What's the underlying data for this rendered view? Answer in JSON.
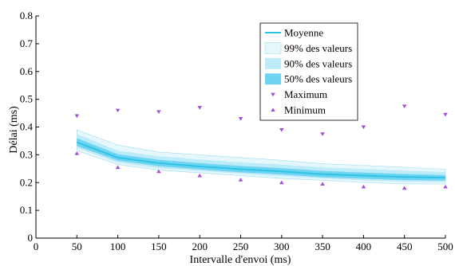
{
  "chart_data": {
    "type": "line",
    "xlabel": "Intervalle d'envoi (ms)",
    "ylabel": "Délai (ms)",
    "xlim": [
      0,
      500
    ],
    "ylim": [
      0,
      0.8
    ],
    "x_ticks": [
      "0",
      "50",
      "100",
      "150",
      "200",
      "250",
      "300",
      "350",
      "400",
      "450",
      "500"
    ],
    "y_ticks": [
      "0",
      "0.1",
      "0.2",
      "0.3",
      "0.4",
      "0.5",
      "0.6",
      "0.7",
      "0.8"
    ],
    "grid": false,
    "legend_position": "top-right",
    "colors": {
      "mean": "#2ec4e6",
      "band99": "#e6f7fc",
      "band90": "#bdebf8",
      "band50": "#6fd3f2",
      "marker": "#a24fd6"
    },
    "x": [
      50,
      100,
      150,
      200,
      250,
      300,
      350,
      400,
      450,
      500
    ],
    "mean": [
      0.345,
      0.29,
      0.27,
      0.258,
      0.248,
      0.24,
      0.23,
      0.225,
      0.22,
      0.218
    ],
    "band99": {
      "upper": [
        0.39,
        0.335,
        0.31,
        0.3,
        0.29,
        0.28,
        0.268,
        0.262,
        0.255,
        0.248
      ],
      "lower": [
        0.315,
        0.265,
        0.245,
        0.235,
        0.225,
        0.215,
        0.208,
        0.2,
        0.195,
        0.195
      ]
    },
    "band90": {
      "upper": [
        0.375,
        0.315,
        0.295,
        0.283,
        0.273,
        0.265,
        0.255,
        0.249,
        0.243,
        0.238
      ],
      "lower": [
        0.325,
        0.272,
        0.252,
        0.242,
        0.232,
        0.223,
        0.215,
        0.208,
        0.203,
        0.202
      ]
    },
    "band50": {
      "upper": [
        0.36,
        0.302,
        0.282,
        0.27,
        0.26,
        0.252,
        0.242,
        0.236,
        0.231,
        0.227
      ],
      "lower": [
        0.332,
        0.279,
        0.259,
        0.247,
        0.237,
        0.229,
        0.219,
        0.214,
        0.209,
        0.207
      ]
    },
    "series": [
      {
        "name": "Maximum",
        "x": [
          50,
          100,
          150,
          200,
          250,
          300,
          350,
          400,
          450,
          500
        ],
        "values": [
          0.44,
          0.46,
          0.455,
          0.47,
          0.43,
          0.39,
          0.375,
          0.4,
          0.475,
          0.445
        ]
      },
      {
        "name": "Minimum",
        "x": [
          50,
          100,
          150,
          200,
          250,
          300,
          350,
          400,
          450,
          500
        ],
        "values": [
          0.305,
          0.255,
          0.24,
          0.225,
          0.21,
          0.2,
          0.195,
          0.185,
          0.18,
          0.185
        ]
      }
    ],
    "legend": [
      {
        "label": "Moyenne",
        "kind": "line"
      },
      {
        "label": "99% des valeurs",
        "kind": "band99"
      },
      {
        "label": "90% des valeurs",
        "kind": "band90"
      },
      {
        "label": "50% des valeurs",
        "kind": "band50"
      },
      {
        "label": "Maximum",
        "kind": "max"
      },
      {
        "label": "Minimum",
        "kind": "min"
      }
    ]
  }
}
